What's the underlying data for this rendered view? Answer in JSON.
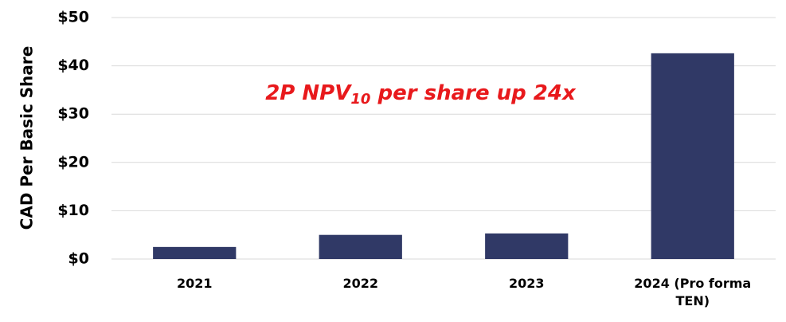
{
  "chart_data": {
    "type": "bar",
    "y_label": "CAD Per Basic Share",
    "annotation": [
      "2P NPV",
      "10",
      " per share up 24x"
    ],
    "categories": [
      "2021",
      "2022",
      "2023",
      "2024 (Pro forma TEN)"
    ],
    "values": [
      2.5,
      5.0,
      5.3,
      42.6
    ],
    "color": "#303966",
    "ylim": [
      0,
      50
    ],
    "yticks": [
      {
        "value": 0,
        "label": "$0"
      },
      {
        "value": 10,
        "label": "$10"
      },
      {
        "value": 20,
        "label": "$20"
      },
      {
        "value": 30,
        "label": "$30"
      },
      {
        "value": 40,
        "label": "$40"
      },
      {
        "value": 50,
        "label": "$50"
      }
    ],
    "grid": true
  }
}
